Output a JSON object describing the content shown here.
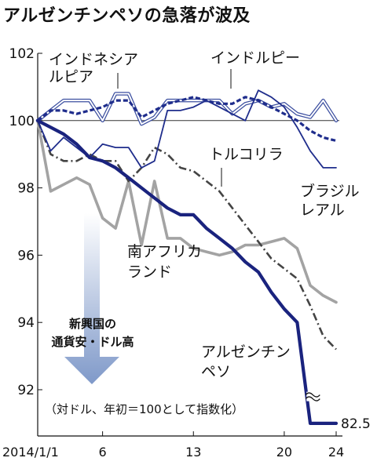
{
  "chart_data": {
    "type": "line",
    "title": "アルゼンチンペソの急落が波及",
    "note": "（対ドル、年初＝100として指数化）",
    "annotation": [
      "新興国の",
      "通貨安・ドル高"
    ],
    "end_value_label": "82.5",
    "ylim": [
      92,
      102
    ],
    "yticks": [
      92,
      94,
      96,
      98,
      100,
      102
    ],
    "x_ticks": [
      {
        "x": 1,
        "label": "2014/1/1"
      },
      {
        "x": 6,
        "label": "6"
      },
      {
        "x": 13,
        "label": "13"
      },
      {
        "x": 20,
        "label": "20"
      },
      {
        "x": 24,
        "label": "24"
      }
    ],
    "x_range": [
      1,
      24
    ],
    "reference_line": 100,
    "series": [
      {
        "name": "インドネシアルピア",
        "label_lines": [
          "インドネシア",
          "ルピア"
        ],
        "style": "double",
        "color": "#3c4fa0",
        "x": [
          1,
          2,
          3,
          4,
          5,
          6,
          7,
          8,
          9,
          10,
          11,
          12,
          13,
          14,
          15,
          16,
          17,
          18,
          19,
          20,
          21,
          22,
          23,
          24
        ],
        "y": [
          100.0,
          100.3,
          100.6,
          100.6,
          100.6,
          100.0,
          100.8,
          100.8,
          99.9,
          100.1,
          100.6,
          100.6,
          100.6,
          100.6,
          100.6,
          100.2,
          100.5,
          100.6,
          100.4,
          100.5,
          100.2,
          100.1,
          100.6,
          100.0
        ]
      },
      {
        "name": "インドルピー",
        "label_lines": [
          "インドルピー"
        ],
        "style": "dashed",
        "color": "#1f2d8c",
        "x": [
          1,
          2,
          3,
          4,
          5,
          6,
          7,
          8,
          9,
          10,
          11,
          12,
          13,
          14,
          15,
          16,
          17,
          18,
          19,
          20,
          21,
          22,
          23,
          24
        ],
        "y": [
          100.0,
          100.3,
          100.3,
          100.2,
          100.3,
          100.4,
          100.6,
          100.6,
          100.1,
          100.3,
          100.5,
          100.6,
          100.7,
          100.6,
          100.5,
          100.5,
          100.7,
          100.6,
          100.4,
          100.2,
          100.0,
          99.7,
          99.5,
          99.4
        ]
      },
      {
        "name": "ブラジルレアル",
        "label_lines": [
          "ブラジル",
          "レアル"
        ],
        "style": "solid-thin",
        "color": "#1f2d8c",
        "x": [
          1,
          2,
          3,
          4,
          5,
          6,
          7,
          8,
          9,
          10,
          11,
          12,
          13,
          14,
          15,
          16,
          17,
          18,
          19,
          20,
          21,
          22,
          23,
          24
        ],
        "y": [
          100.0,
          99.1,
          99.5,
          99.2,
          98.9,
          99.3,
          99.2,
          99.2,
          98.6,
          98.8,
          100.3,
          100.3,
          100.4,
          100.6,
          100.4,
          100.2,
          100.0,
          100.9,
          100.7,
          100.4,
          99.8,
          99.1,
          98.6,
          98.6
        ]
      },
      {
        "name": "トルコリラ",
        "label_lines": [
          "トルコリラ"
        ],
        "style": "dashdot",
        "color": "#444444",
        "x": [
          1,
          2,
          3,
          4,
          5,
          6,
          7,
          8,
          9,
          10,
          11,
          12,
          13,
          14,
          15,
          16,
          17,
          18,
          19,
          20,
          21,
          22,
          23,
          24
        ],
        "y": [
          100.0,
          99.0,
          98.8,
          98.8,
          99.0,
          98.8,
          98.8,
          98.2,
          98.6,
          99.2,
          99.0,
          98.6,
          98.5,
          98.2,
          97.9,
          97.4,
          96.9,
          96.4,
          95.9,
          95.6,
          95.3,
          94.5,
          93.6,
          93.2
        ]
      },
      {
        "name": "南アフリカランド",
        "label_lines": [
          "南アフリカ",
          "ランド"
        ],
        "style": "solid-gray",
        "color": "#a3a3a3",
        "x": [
          1,
          2,
          3,
          4,
          5,
          6,
          7,
          8,
          9,
          10,
          11,
          12,
          13,
          14,
          15,
          16,
          17,
          18,
          19,
          20,
          21,
          22,
          23,
          24
        ],
        "y": [
          100.0,
          97.9,
          98.1,
          98.3,
          98.1,
          97.1,
          96.8,
          98.2,
          96.3,
          98.2,
          96.5,
          96.5,
          96.2,
          96.1,
          96.0,
          96.1,
          96.3,
          96.3,
          96.4,
          96.5,
          96.2,
          95.1,
          94.8,
          94.6
        ]
      },
      {
        "name": "アルゼンチンペソ",
        "label_lines": [
          "アルゼンチン",
          "ペソ"
        ],
        "style": "solid-thick",
        "color": "#1a237e",
        "x": [
          1,
          2,
          3,
          4,
          5,
          6,
          7,
          8,
          9,
          10,
          11,
          12,
          13,
          14,
          15,
          16,
          17,
          18,
          19,
          20,
          21,
          22,
          23,
          24
        ],
        "y": [
          100.0,
          99.8,
          99.6,
          99.3,
          98.9,
          98.8,
          98.6,
          98.3,
          98.0,
          97.7,
          97.4,
          97.2,
          97.2,
          96.8,
          96.5,
          96.2,
          95.8,
          95.5,
          94.9,
          94.4,
          94.0,
          91.0,
          91.0,
          91.0
        ],
        "axis_break": true,
        "end_value": 82.5
      }
    ]
  }
}
